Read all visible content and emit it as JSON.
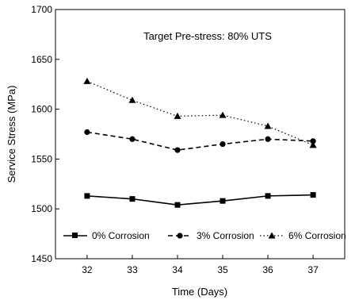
{
  "chart_data": {
    "type": "line",
    "title": "",
    "annotation": "Target Pre-stress: 80% UTS",
    "xlabel": "Time (Days)",
    "ylabel": "Service Stress (MPa)",
    "x": [
      32,
      33,
      34,
      35,
      36,
      37
    ],
    "xlim": [
      31.3,
      37.7
    ],
    "ylim": [
      1450,
      1700
    ],
    "x_ticks": [
      32,
      33,
      34,
      35,
      36,
      37
    ],
    "y_ticks": [
      1450,
      1500,
      1550,
      1600,
      1650,
      1700
    ],
    "grid": false,
    "legend_position": "bottom",
    "series": [
      {
        "name": "0% Corrosion",
        "marker": "square",
        "dash": "solid",
        "color": "#000000",
        "values": [
          1513,
          1510,
          1504,
          1508,
          1513,
          1514
        ]
      },
      {
        "name": "3% Corrosion",
        "marker": "circle",
        "dash": "dashed",
        "color": "#000000",
        "values": [
          1577,
          1570,
          1559,
          1565,
          1570,
          1568
        ]
      },
      {
        "name": "6% Corrosion",
        "marker": "triangle",
        "dash": "dotted",
        "color": "#000000",
        "values": [
          1628,
          1609,
          1593,
          1594,
          1583,
          1564
        ]
      }
    ]
  }
}
